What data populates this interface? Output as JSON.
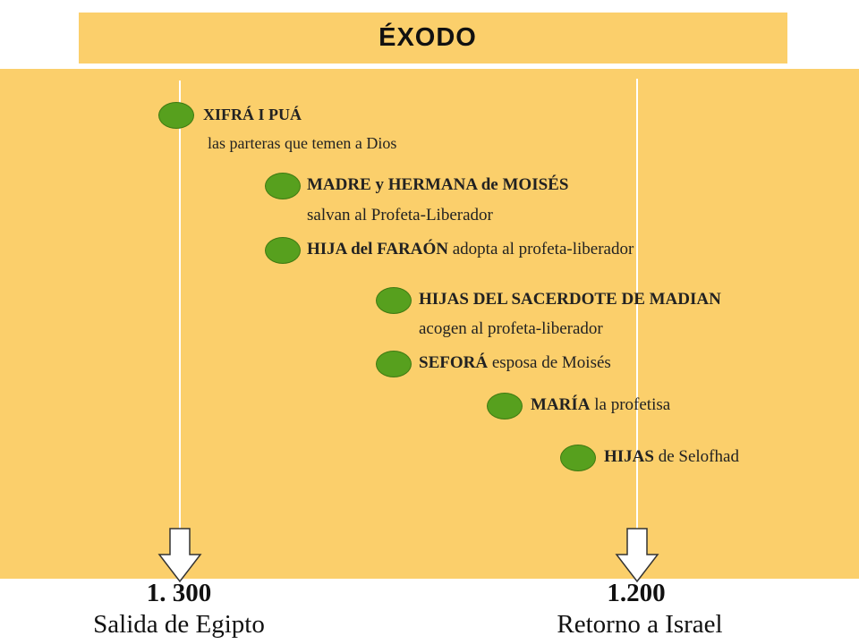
{
  "title": "ÉXODO",
  "events": [
    {
      "bold": "XIFRÁ I PUÁ",
      "rest": "",
      "line2": "las parteras que temen a Dios"
    },
    {
      "bold": "MADRE y HERMANA de MOISÉS",
      "rest": "",
      "line2": "salvan al Profeta-Liberador"
    },
    {
      "bold": "HIJA del FARAÓN",
      "rest": " adopta al profeta-liberador",
      "line2": ""
    },
    {
      "bold": "HIJAS DEL SACERDOTE DE MADIAN",
      "rest": "",
      "line2": "acogen al profeta-liberador"
    },
    {
      "bold": "SEFORÁ",
      "rest": " esposa de Moisés",
      "line2": ""
    },
    {
      "bold": "MARÍA",
      "rest": " la profetisa",
      "line2": ""
    },
    {
      "bold": "HIJAS",
      "rest": " de Selofhad",
      "line2": ""
    }
  ],
  "markers": [
    {
      "year": "1. 300",
      "label": "Salida de Egipto"
    },
    {
      "year": "1.200",
      "label": "Retorno a Israel"
    }
  ],
  "colors": {
    "panel": "#fbcf6b",
    "dot": "#57a01e",
    "arrow": "#ffffff"
  }
}
